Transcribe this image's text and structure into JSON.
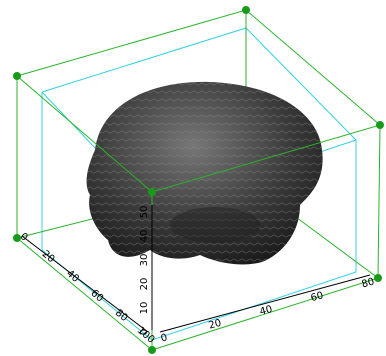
{
  "axes": {
    "vertical": {
      "ticks": [
        "0",
        "10",
        "20",
        "30",
        "40",
        "50"
      ]
    },
    "right": {
      "ticks": [
        "0",
        "20",
        "40",
        "60",
        "80"
      ]
    },
    "left": {
      "ticks": [
        "0",
        "20",
        "40",
        "60",
        "80",
        "100"
      ]
    }
  }
}
